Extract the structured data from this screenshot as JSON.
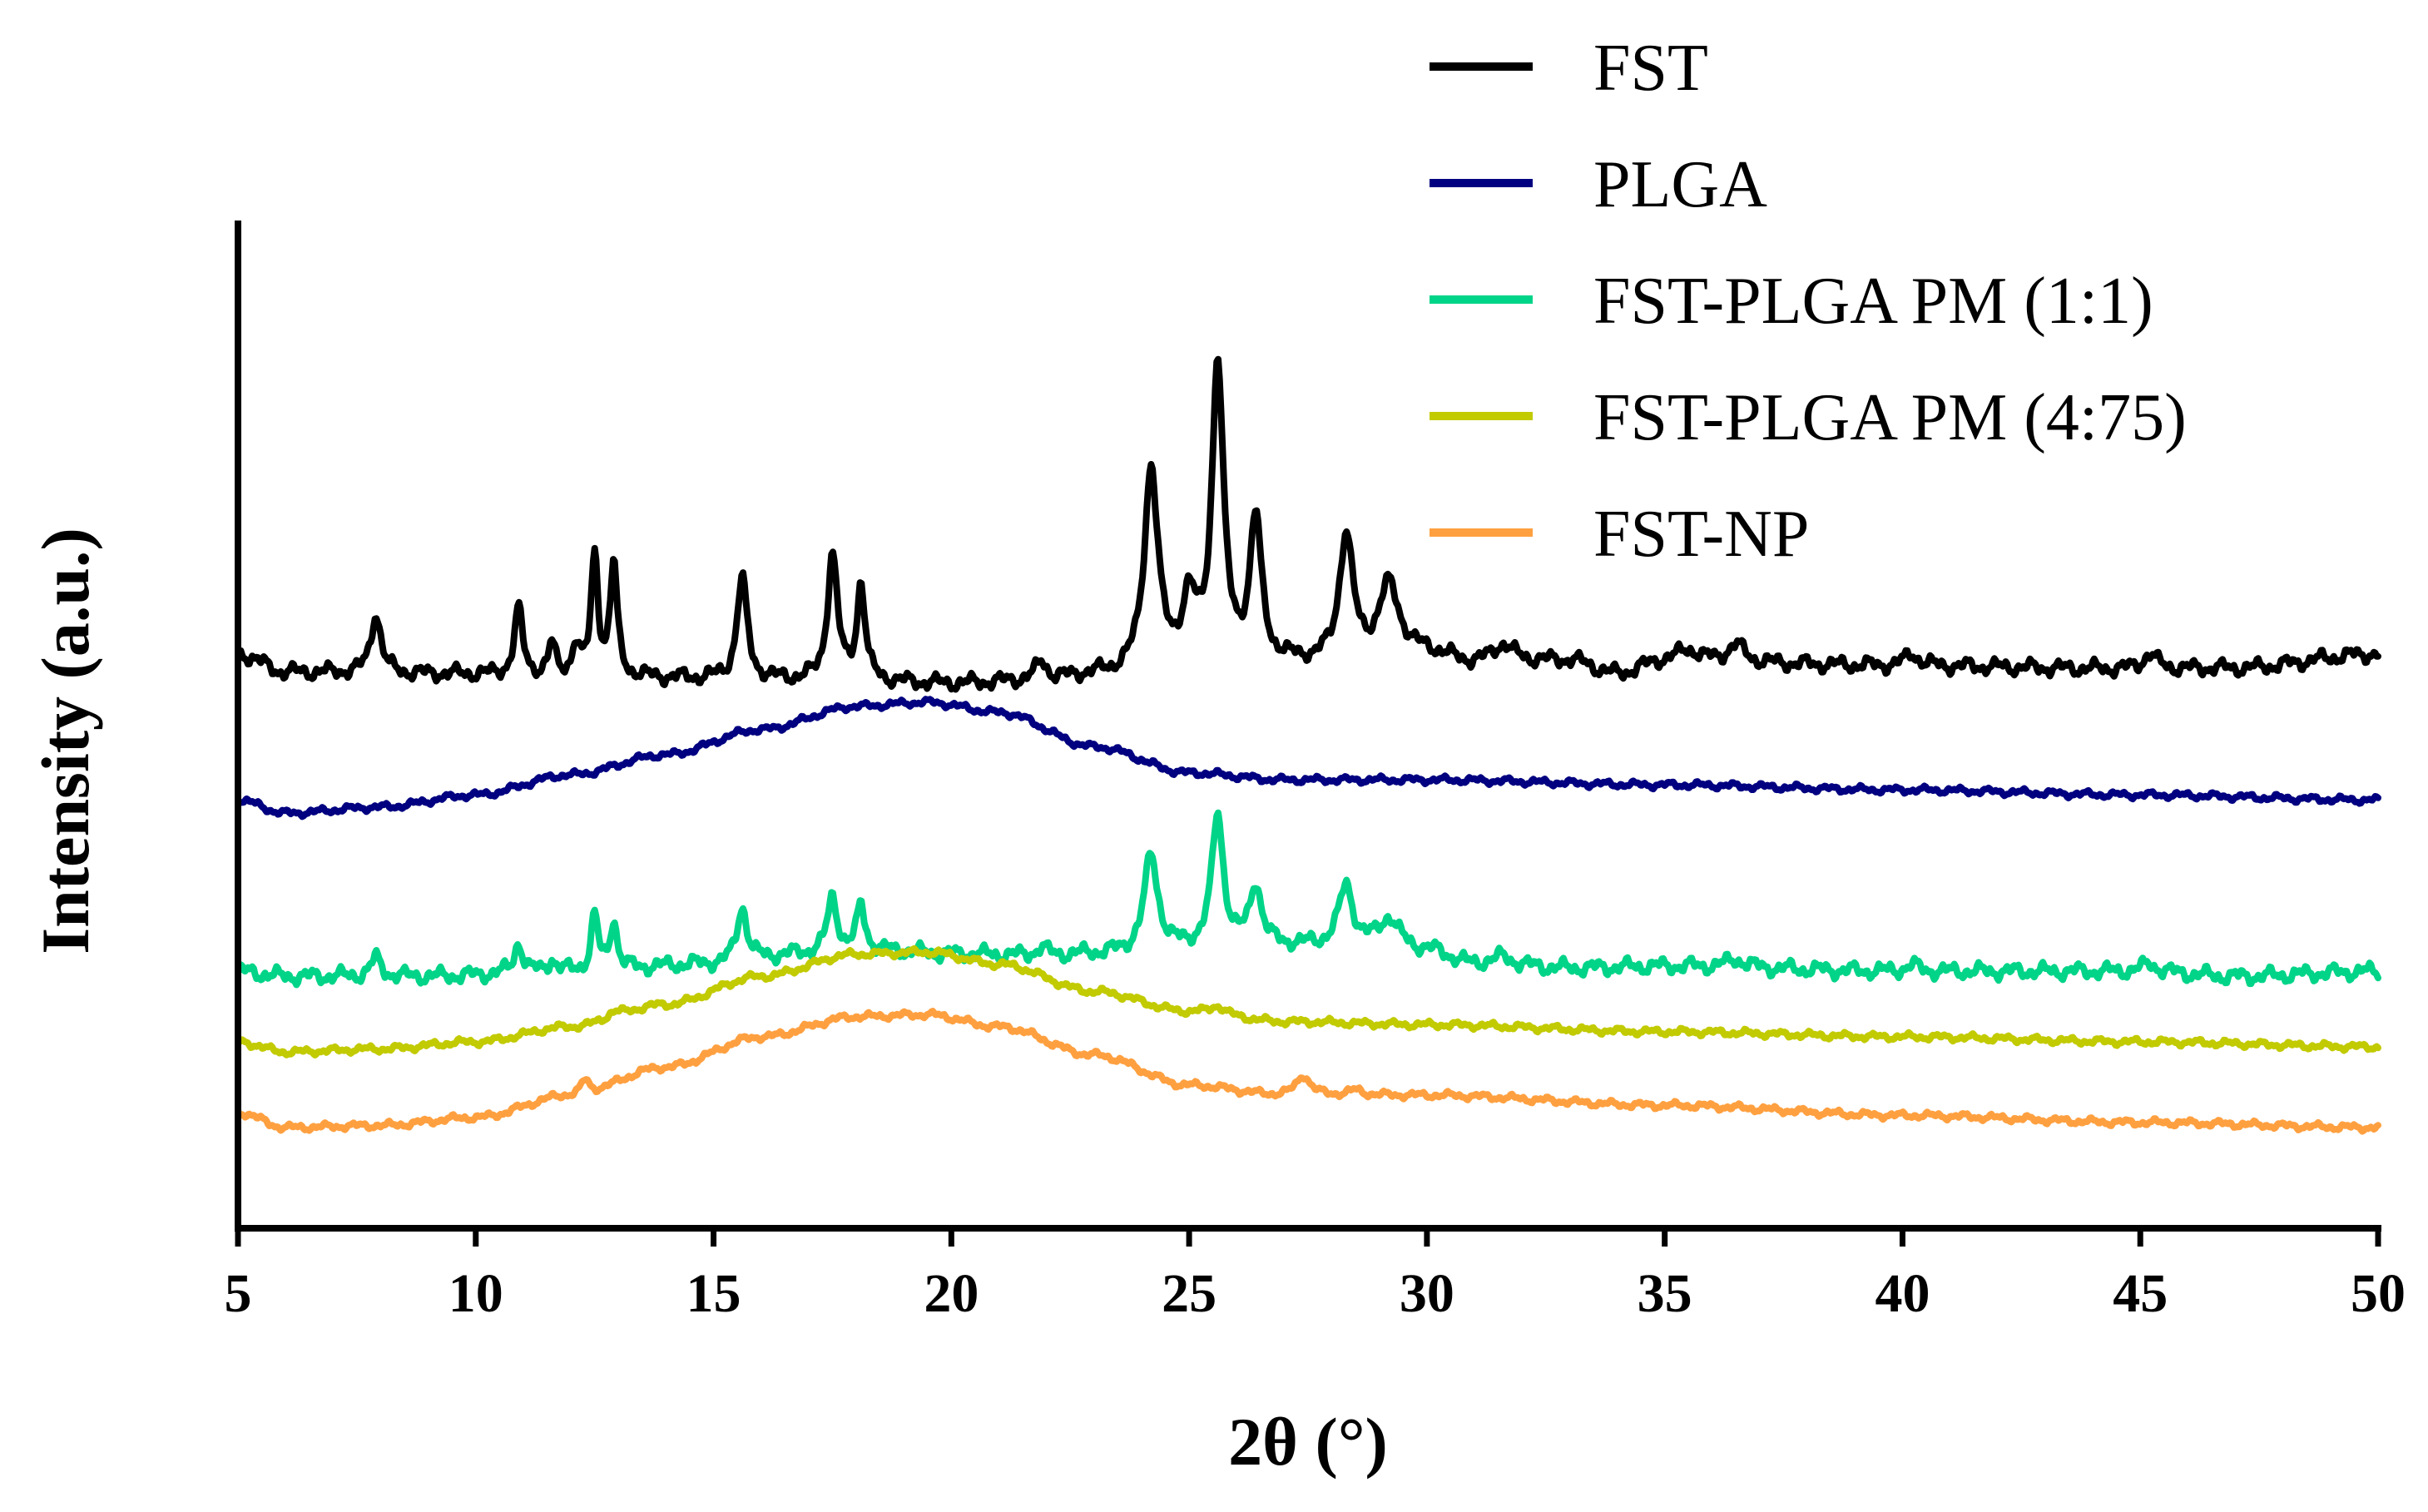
{
  "chart_data": {
    "type": "line",
    "title": "",
    "xlabel": "2θ (°)",
    "ylabel": "Intensity (a.u.)",
    "xlim": [
      5,
      50
    ],
    "ylim": [
      0,
      10
    ],
    "x_ticks": [
      5,
      10,
      15,
      20,
      25,
      30,
      35,
      40,
      45,
      50
    ],
    "y_ticks": [],
    "grid": false,
    "legend_position": "top-right",
    "series": [
      {
        "name": "FST",
        "color": "#000000",
        "baseline": [
          [
            5,
            5.7
          ],
          [
            6,
            5.52
          ],
          [
            9,
            5.5
          ],
          [
            12,
            5.48
          ],
          [
            15,
            5.45
          ],
          [
            18,
            5.42
          ],
          [
            20,
            5.4
          ],
          [
            22,
            5.43
          ],
          [
            23,
            5.48
          ],
          [
            26,
            5.6
          ],
          [
            28,
            5.6
          ],
          [
            30,
            5.7
          ],
          [
            31,
            5.6
          ],
          [
            33,
            5.63
          ],
          [
            34,
            5.5
          ],
          [
            35,
            5.62
          ],
          [
            37,
            5.6
          ],
          [
            40,
            5.58
          ],
          [
            45,
            5.55
          ],
          [
            47,
            5.56
          ],
          [
            50,
            5.7
          ]
        ],
        "peaks": [
          [
            7.9,
            0.6,
            0.22
          ],
          [
            10.9,
            0.65,
            0.18
          ],
          [
            11.6,
            0.3,
            0.15
          ],
          [
            12.1,
            0.3,
            0.15
          ],
          [
            12.5,
            1.2,
            0.15
          ],
          [
            12.9,
            1.1,
            0.15
          ],
          [
            15.6,
            1.0,
            0.22
          ],
          [
            17.5,
            1.25,
            0.22
          ],
          [
            18.1,
            0.95,
            0.18
          ],
          [
            21.9,
            0.18,
            0.25
          ],
          [
            24.2,
            2.0,
            0.3
          ],
          [
            25.0,
            0.6,
            0.3
          ],
          [
            25.6,
            2.95,
            0.25
          ],
          [
            26.4,
            1.4,
            0.25
          ],
          [
            28.3,
            1.25,
            0.3
          ],
          [
            29.2,
            0.7,
            0.45
          ],
          [
            31.6,
            0.18,
            0.45
          ],
          [
            35.5,
            0.12,
            0.5
          ],
          [
            36.5,
            0.18,
            0.4
          ],
          [
            40.2,
            0.12,
            0.3
          ],
          [
            45.2,
            0.15,
            0.3
          ]
        ]
      },
      {
        "name": "PLGA",
        "color": "#000080",
        "baseline": [
          [
            5,
            4.25
          ],
          [
            6,
            4.12
          ],
          [
            8,
            4.18
          ],
          [
            10,
            4.3
          ],
          [
            12,
            4.5
          ],
          [
            14,
            4.7
          ],
          [
            16,
            4.95
          ],
          [
            18,
            5.18
          ],
          [
            19.5,
            5.22
          ],
          [
            21,
            5.12
          ],
          [
            23,
            4.78
          ],
          [
            25,
            4.52
          ],
          [
            27,
            4.45
          ],
          [
            30,
            4.45
          ],
          [
            35,
            4.4
          ],
          [
            40,
            4.35
          ],
          [
            45,
            4.3
          ],
          [
            50,
            4.25
          ]
        ],
        "peaks": []
      },
      {
        "name": "FST-PLGA PM (1:1)",
        "color": "#00D488",
        "baseline": [
          [
            5,
            2.55
          ],
          [
            6,
            2.5
          ],
          [
            9,
            2.5
          ],
          [
            12,
            2.55
          ],
          [
            15,
            2.62
          ],
          [
            17,
            2.72
          ],
          [
            18.5,
            2.75
          ],
          [
            20,
            2.72
          ],
          [
            22,
            2.7
          ],
          [
            23,
            2.72
          ],
          [
            26,
            2.8
          ],
          [
            28,
            2.8
          ],
          [
            30,
            2.75
          ],
          [
            31,
            2.62
          ],
          [
            33,
            2.58
          ],
          [
            35,
            2.6
          ],
          [
            40,
            2.55
          ],
          [
            45,
            2.55
          ],
          [
            47,
            2.5
          ],
          [
            50,
            2.55
          ]
        ],
        "peaks": [
          [
            7.9,
            0.18,
            0.22
          ],
          [
            10.9,
            0.3,
            0.18
          ],
          [
            11.6,
            0.12,
            0.15
          ],
          [
            12.5,
            0.55,
            0.15
          ],
          [
            12.9,
            0.5,
            0.15
          ],
          [
            15.6,
            0.55,
            0.22
          ],
          [
            17.5,
            0.55,
            0.22
          ],
          [
            18.1,
            0.45,
            0.18
          ],
          [
            21.9,
            0.08,
            0.25
          ],
          [
            24.2,
            0.95,
            0.3
          ],
          [
            25.6,
            1.3,
            0.25
          ],
          [
            26.4,
            0.6,
            0.25
          ],
          [
            28.3,
            0.6,
            0.3
          ],
          [
            29.2,
            0.3,
            0.45
          ],
          [
            31.6,
            0.08,
            0.45
          ],
          [
            36.5,
            0.08,
            0.4
          ],
          [
            40.2,
            0.06,
            0.3
          ],
          [
            45.2,
            0.08,
            0.3
          ]
        ]
      },
      {
        "name": "FST-PLGA PM (4:75)",
        "color": "#C2CA00",
        "baseline": [
          [
            5,
            1.85
          ],
          [
            6,
            1.75
          ],
          [
            8,
            1.78
          ],
          [
            10,
            1.85
          ],
          [
            12,
            2.0
          ],
          [
            14,
            2.22
          ],
          [
            16,
            2.5
          ],
          [
            18,
            2.72
          ],
          [
            19.5,
            2.74
          ],
          [
            21,
            2.62
          ],
          [
            23,
            2.35
          ],
          [
            25,
            2.15
          ],
          [
            27,
            2.05
          ],
          [
            30,
            2.02
          ],
          [
            35,
            1.95
          ],
          [
            40,
            1.9
          ],
          [
            45,
            1.85
          ],
          [
            50,
            1.8
          ]
        ],
        "peaks": [
          [
            12.9,
            0.06,
            0.3
          ],
          [
            25.6,
            0.08,
            0.3
          ]
        ]
      },
      {
        "name": "FST-NP",
        "color": "#FFA040",
        "baseline": [
          [
            5,
            1.15
          ],
          [
            6,
            1.0
          ],
          [
            8,
            1.02
          ],
          [
            10,
            1.1
          ],
          [
            12,
            1.32
          ],
          [
            14,
            1.6
          ],
          [
            16,
            1.9
          ],
          [
            18,
            2.1
          ],
          [
            19.5,
            2.12
          ],
          [
            21,
            2.0
          ],
          [
            23,
            1.72
          ],
          [
            25,
            1.42
          ],
          [
            27,
            1.32
          ],
          [
            30,
            1.32
          ],
          [
            35,
            1.22
          ],
          [
            40,
            1.12
          ],
          [
            45,
            1.05
          ],
          [
            50,
            1.0
          ]
        ],
        "peaks": [
          [
            12.3,
            0.14,
            0.18
          ],
          [
            27.4,
            0.2,
            0.3
          ],
          [
            28.5,
            0.05,
            0.3
          ]
        ]
      }
    ]
  }
}
